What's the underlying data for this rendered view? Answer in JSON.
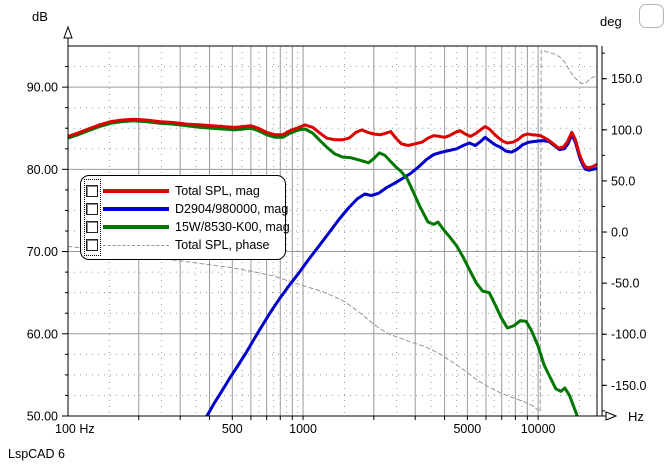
{
  "window": {
    "footer_text": "LspCAD 6"
  },
  "header": {
    "left_unit": "dB",
    "right_unit": "deg"
  },
  "axis_labels": {
    "x_start": "100 Hz",
    "x_end": "Hz"
  },
  "colors": {
    "grid": "#9a9a9a",
    "frame": "#000000",
    "total_spl": "#dd0000",
    "tweeter": "#0000cc",
    "woofer": "#007700",
    "phase": "#9494a8"
  },
  "legend": {
    "items": [
      {
        "label": "Total SPL, mag",
        "color": "#dd0000",
        "style": "solid"
      },
      {
        "label": "D2904/980000, mag",
        "color": "#0000cc",
        "style": "solid"
      },
      {
        "label": "15W/8530-K00, mag",
        "color": "#007700",
        "style": "solid"
      },
      {
        "label": "Total SPL, phase",
        "color": "#9494a8",
        "style": "dashed"
      }
    ]
  },
  "chart_data": {
    "type": "line",
    "title": "",
    "x_scale": "log",
    "x_range": [
      100,
      17800
    ],
    "grid": "on",
    "legend_position": "upper-left-inside",
    "x_axis": {
      "unit": "Hz",
      "start_label": "100 Hz",
      "ticks": [
        {
          "v": 500,
          "label": "500"
        },
        {
          "v": 1000,
          "label": "1000"
        },
        {
          "v": 5000,
          "label": "5000"
        },
        {
          "v": 10000,
          "label": "10000"
        }
      ],
      "major_grid": [
        200,
        300,
        400,
        500,
        600,
        700,
        800,
        900,
        1000,
        2000,
        3000,
        4000,
        5000,
        6000,
        7000,
        8000,
        9000,
        10000
      ],
      "minor_grid": [
        150,
        250,
        350,
        450,
        550,
        650,
        750,
        850,
        950,
        1500,
        2500,
        3500,
        4500,
        5500,
        6500,
        7500,
        8500,
        9500,
        15000
      ]
    },
    "y_left": {
      "unit": "dB",
      "range": [
        50,
        95
      ],
      "ticks": [
        {
          "v": 90,
          "label": "90.00"
        },
        {
          "v": 80,
          "label": "80.00"
        },
        {
          "v": 70,
          "label": "70.00"
        },
        {
          "v": 60,
          "label": "60.00"
        },
        {
          "v": 50,
          "label": "50.00"
        }
      ],
      "major_grid": [
        60,
        70,
        80,
        90
      ],
      "minor_grid": [
        52.5,
        55,
        57.5,
        62.5,
        65,
        67.5,
        72.5,
        75,
        77.5,
        82.5,
        85,
        87.5,
        92.5
      ]
    },
    "y_right": {
      "unit": "deg",
      "range": [
        -180,
        182
      ],
      "ticks": [
        {
          "v": 150,
          "label": "150.0"
        },
        {
          "v": 100,
          "label": "100.0"
        },
        {
          "v": 50,
          "label": "50.0"
        },
        {
          "v": 0,
          "label": "0.0"
        },
        {
          "v": -50,
          "label": "-50.0"
        },
        {
          "v": -100,
          "label": "-100.0"
        },
        {
          "v": -150,
          "label": "-150.0"
        }
      ],
      "minor_tick_step": 25
    },
    "series": [
      {
        "name": "Total SPL, phase",
        "axis": "right",
        "color": "#9494a8",
        "width": 1,
        "dash": "4 3",
        "points": [
          [
            100,
            -14
          ],
          [
            125,
            -17
          ],
          [
            160,
            -20
          ],
          [
            200,
            -23
          ],
          [
            250,
            -26
          ],
          [
            320,
            -29
          ],
          [
            400,
            -32
          ],
          [
            500,
            -35
          ],
          [
            620,
            -39
          ],
          [
            750,
            -43
          ],
          [
            900,
            -49
          ],
          [
            1050,
            -54
          ],
          [
            1200,
            -58
          ],
          [
            1350,
            -63
          ],
          [
            1500,
            -68
          ],
          [
            1700,
            -77
          ],
          [
            1900,
            -86
          ],
          [
            2100,
            -94
          ],
          [
            2330,
            -100
          ],
          [
            2600,
            -104
          ],
          [
            2900,
            -108
          ],
          [
            3300,
            -112
          ],
          [
            3800,
            -119
          ],
          [
            4300,
            -127
          ],
          [
            4900,
            -136
          ],
          [
            5500,
            -145
          ],
          [
            6200,
            -152
          ],
          [
            7000,
            -158
          ],
          [
            7800,
            -162
          ],
          [
            8700,
            -166
          ],
          [
            9500,
            -170
          ],
          [
            10200,
            -176
          ],
          [
            10300,
            178
          ],
          [
            11000,
            176
          ],
          [
            11800,
            174
          ],
          [
            12400,
            171
          ],
          [
            13000,
            166
          ],
          [
            13600,
            158
          ],
          [
            14200,
            152
          ],
          [
            14800,
            148
          ],
          [
            15400,
            145
          ],
          [
            16000,
            146
          ],
          [
            16700,
            150
          ],
          [
            17300,
            152
          ],
          [
            17800,
            151
          ]
        ]
      },
      {
        "name": "D2904/980000, mag",
        "axis": "left",
        "color": "#0000cc",
        "width": 3,
        "dash": null,
        "points": [
          [
            390,
            50.0
          ],
          [
            420,
            51.6
          ],
          [
            455,
            53.2
          ],
          [
            490,
            54.7
          ],
          [
            530,
            56.2
          ],
          [
            575,
            57.8
          ],
          [
            620,
            59.4
          ],
          [
            670,
            61.0
          ],
          [
            730,
            62.7
          ],
          [
            800,
            64.4
          ],
          [
            880,
            66.0
          ],
          [
            960,
            67.4
          ],
          [
            1060,
            69.1
          ],
          [
            1170,
            70.7
          ],
          [
            1290,
            72.3
          ],
          [
            1420,
            73.9
          ],
          [
            1560,
            75.3
          ],
          [
            1700,
            76.4
          ],
          [
            1830,
            77.0
          ],
          [
            1950,
            76.8
          ],
          [
            2100,
            77.1
          ],
          [
            2270,
            77.8
          ],
          [
            2450,
            78.3
          ],
          [
            2650,
            78.9
          ],
          [
            2870,
            79.5
          ],
          [
            3100,
            80.3
          ],
          [
            3350,
            81.2
          ],
          [
            3600,
            81.8
          ],
          [
            3900,
            82.1
          ],
          [
            4200,
            82.3
          ],
          [
            4500,
            82.5
          ],
          [
            4800,
            82.9
          ],
          [
            5100,
            83.2
          ],
          [
            5400,
            82.9
          ],
          [
            5700,
            83.4
          ],
          [
            5950,
            83.9
          ],
          [
            6200,
            83.5
          ],
          [
            6550,
            83.0
          ],
          [
            6900,
            82.7
          ],
          [
            7300,
            82.2
          ],
          [
            7700,
            82.1
          ],
          [
            8100,
            82.4
          ],
          [
            8600,
            83.0
          ],
          [
            9100,
            83.3
          ],
          [
            9700,
            83.4
          ],
          [
            10400,
            83.5
          ],
          [
            11100,
            83.4
          ],
          [
            11700,
            82.9
          ],
          [
            12300,
            82.4
          ],
          [
            12900,
            82.5
          ],
          [
            13400,
            83.1
          ],
          [
            13900,
            84.2
          ],
          [
            14400,
            83.3
          ],
          [
            15000,
            81.5
          ],
          [
            15500,
            80.5
          ],
          [
            15900,
            80.0
          ],
          [
            16500,
            79.9
          ],
          [
            17100,
            80.0
          ],
          [
            17800,
            80.1
          ]
        ]
      },
      {
        "name": "15W/8530-K00, mag",
        "axis": "left",
        "color": "#007700",
        "width": 3,
        "dash": null,
        "points": [
          [
            100,
            83.8
          ],
          [
            110,
            84.2
          ],
          [
            122,
            84.7
          ],
          [
            136,
            85.2
          ],
          [
            152,
            85.6
          ],
          [
            170,
            85.8
          ],
          [
            190,
            85.9
          ],
          [
            215,
            85.8
          ],
          [
            245,
            85.6
          ],
          [
            280,
            85.5
          ],
          [
            320,
            85.3
          ],
          [
            365,
            85.1
          ],
          [
            410,
            85.0
          ],
          [
            460,
            84.9
          ],
          [
            510,
            84.8
          ],
          [
            555,
            84.9
          ],
          [
            600,
            85.0
          ],
          [
            645,
            84.7
          ],
          [
            700,
            84.2
          ],
          [
            760,
            83.9
          ],
          [
            820,
            83.9
          ],
          [
            880,
            84.4
          ],
          [
            960,
            84.8
          ],
          [
            1020,
            84.9
          ],
          [
            1100,
            84.4
          ],
          [
            1180,
            83.5
          ],
          [
            1260,
            82.7
          ],
          [
            1360,
            81.9
          ],
          [
            1470,
            81.5
          ],
          [
            1600,
            81.4
          ],
          [
            1750,
            81.1
          ],
          [
            1900,
            80.8
          ],
          [
            2000,
            81.3
          ],
          [
            2110,
            82.0
          ],
          [
            2230,
            81.7
          ],
          [
            2350,
            81.0
          ],
          [
            2480,
            80.3
          ],
          [
            2620,
            79.7
          ],
          [
            2780,
            78.8
          ],
          [
            2950,
            77.2
          ],
          [
            3150,
            75.4
          ],
          [
            3400,
            73.6
          ],
          [
            3600,
            73.3
          ],
          [
            3750,
            73.6
          ],
          [
            3950,
            72.7
          ],
          [
            4200,
            71.8
          ],
          [
            4500,
            70.7
          ],
          [
            4800,
            69.3
          ],
          [
            5100,
            67.8
          ],
          [
            5450,
            66.2
          ],
          [
            5800,
            65.2
          ],
          [
            6200,
            65.0
          ],
          [
            6550,
            63.6
          ],
          [
            6950,
            62.0
          ],
          [
            7400,
            60.7
          ],
          [
            7900,
            61.0
          ],
          [
            8400,
            61.6
          ],
          [
            8900,
            61.5
          ],
          [
            9400,
            60.3
          ],
          [
            10000,
            58.5
          ],
          [
            10600,
            56.2
          ],
          [
            11200,
            54.8
          ],
          [
            11900,
            53.3
          ],
          [
            12500,
            53.0
          ],
          [
            13000,
            53.4
          ],
          [
            13600,
            52.5
          ],
          [
            14100,
            51.3
          ],
          [
            14500,
            50.4
          ],
          [
            14800,
            49.6
          ]
        ]
      },
      {
        "name": "Total SPL, mag",
        "axis": "left",
        "color": "#dd0000",
        "width": 3,
        "dash": null,
        "points": [
          [
            100,
            84.0
          ],
          [
            110,
            84.4
          ],
          [
            122,
            84.9
          ],
          [
            136,
            85.4
          ],
          [
            152,
            85.8
          ],
          [
            170,
            86.0
          ],
          [
            190,
            86.1
          ],
          [
            215,
            86.0
          ],
          [
            245,
            85.8
          ],
          [
            280,
            85.7
          ],
          [
            320,
            85.5
          ],
          [
            365,
            85.4
          ],
          [
            410,
            85.3
          ],
          [
            460,
            85.2
          ],
          [
            510,
            85.1
          ],
          [
            555,
            85.2
          ],
          [
            600,
            85.3
          ],
          [
            645,
            85.0
          ],
          [
            700,
            84.5
          ],
          [
            760,
            84.2
          ],
          [
            820,
            84.2
          ],
          [
            880,
            84.7
          ],
          [
            960,
            85.1
          ],
          [
            1020,
            85.4
          ],
          [
            1100,
            85.1
          ],
          [
            1180,
            84.4
          ],
          [
            1260,
            83.8
          ],
          [
            1360,
            83.6
          ],
          [
            1480,
            83.6
          ],
          [
            1570,
            83.8
          ],
          [
            1680,
            84.5
          ],
          [
            1780,
            84.8
          ],
          [
            1880,
            84.5
          ],
          [
            2000,
            84.3
          ],
          [
            2130,
            84.2
          ],
          [
            2250,
            84.4
          ],
          [
            2360,
            84.6
          ],
          [
            2480,
            83.8
          ],
          [
            2620,
            83.1
          ],
          [
            2800,
            82.9
          ],
          [
            3000,
            83.1
          ],
          [
            3200,
            83.3
          ],
          [
            3400,
            83.8
          ],
          [
            3600,
            84.1
          ],
          [
            3800,
            84.0
          ],
          [
            4000,
            83.9
          ],
          [
            4200,
            84.1
          ],
          [
            4450,
            84.5
          ],
          [
            4650,
            84.7
          ],
          [
            4900,
            84.3
          ],
          [
            5150,
            84.0
          ],
          [
            5450,
            84.4
          ],
          [
            5750,
            84.9
          ],
          [
            5950,
            85.2
          ],
          [
            6200,
            84.9
          ],
          [
            6500,
            84.3
          ],
          [
            6800,
            83.8
          ],
          [
            7100,
            83.4
          ],
          [
            7400,
            83.2
          ],
          [
            7800,
            83.3
          ],
          [
            8200,
            83.6
          ],
          [
            8600,
            84.1
          ],
          [
            9000,
            84.3
          ],
          [
            9500,
            84.2
          ],
          [
            10200,
            84.1
          ],
          [
            11000,
            83.6
          ],
          [
            11600,
            83.1
          ],
          [
            12200,
            82.6
          ],
          [
            12800,
            82.7
          ],
          [
            13300,
            83.3
          ],
          [
            13900,
            84.5
          ],
          [
            14400,
            83.6
          ],
          [
            15000,
            81.8
          ],
          [
            15500,
            80.8
          ],
          [
            15900,
            80.3
          ],
          [
            16400,
            80.2
          ],
          [
            17000,
            80.3
          ],
          [
            17500,
            80.5
          ],
          [
            17800,
            80.6
          ]
        ]
      }
    ]
  }
}
